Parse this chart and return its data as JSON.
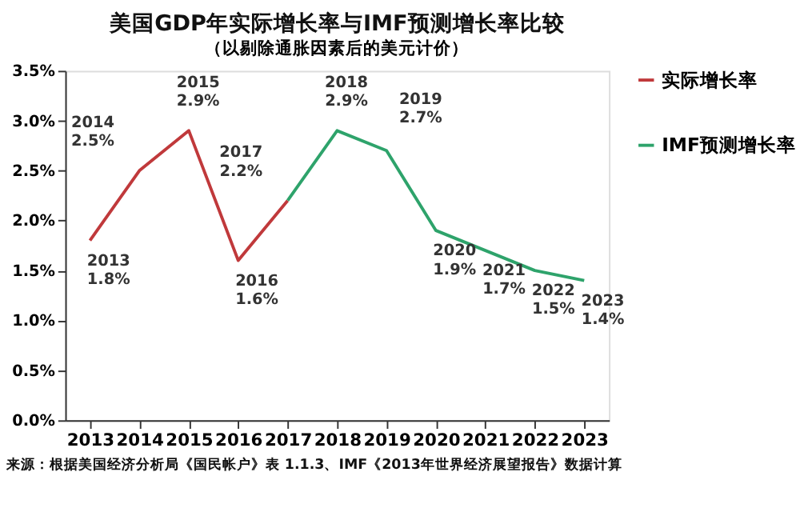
{
  "chart_data": {
    "type": "line",
    "title": "美国GDP年实际增长率与IMF预测增长率比较",
    "subtitle": "（以剔除通胀因素后的美元计价）",
    "categories": [
      "2013",
      "2014",
      "2015",
      "2016",
      "2017",
      "2018",
      "2019",
      "2020",
      "2021",
      "2022",
      "2023"
    ],
    "series": [
      {
        "name": "实际增长率",
        "color": "#c0393b",
        "values": [
          1.8,
          2.5,
          2.9,
          1.6,
          2.2,
          null,
          null,
          null,
          null,
          null,
          null
        ],
        "value_labels": [
          "2013\n1.8%",
          "2014\n2.5%",
          "2015\n2.9%",
          "2016\n1.6%",
          "2017\n2.2%",
          null,
          null,
          null,
          null,
          null,
          null
        ]
      },
      {
        "name": "IMF预测增长率",
        "color": "#2ea36b",
        "values": [
          null,
          null,
          null,
          null,
          2.2,
          2.9,
          2.7,
          1.9,
          1.7,
          1.5,
          1.4
        ],
        "value_labels": [
          null,
          null,
          null,
          null,
          null,
          "2018\n2.9%",
          "2019\n2.7%",
          "2020\n1.9%",
          "2021\n1.7%",
          "2022\n1.5%",
          "2023\n1.4%"
        ]
      }
    ],
    "ylim": [
      0,
      3.5
    ],
    "yticks": [
      {
        "value": 0,
        "label": "0.0%"
      },
      {
        "value": 0.5,
        "label": "0.5%"
      },
      {
        "value": 1,
        "label": "1.0%"
      },
      {
        "value": 1.5,
        "label": "1.5%"
      },
      {
        "value": 2,
        "label": "2.0%"
      },
      {
        "value": 2.5,
        "label": "2.5%"
      },
      {
        "value": 3,
        "label": "3.0%"
      },
      {
        "value": 3.5,
        "label": "3.5%"
      }
    ],
    "grid": false,
    "legend": "right",
    "marker": "none",
    "line_style": "solid",
    "annotations": [
      "来源：根据美国经济分析局《国民帐户》表 1.1.3、IMF《2013年世界经济展望报告》数据计算"
    ]
  }
}
